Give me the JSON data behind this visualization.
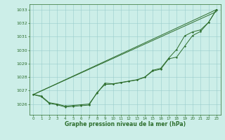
{
  "title": "Graphe pression niveau de la mer (hPa)",
  "bg_color": "#cceee8",
  "grid_color": "#99cccc",
  "line_color": "#2d6e2d",
  "ylim": [
    1025.2,
    1033.4
  ],
  "xlim": [
    -0.5,
    23.5
  ],
  "yticks": [
    1026,
    1027,
    1028,
    1029,
    1030,
    1031,
    1032,
    1033
  ],
  "xticks": [
    0,
    1,
    2,
    3,
    4,
    5,
    6,
    7,
    8,
    9,
    10,
    11,
    12,
    13,
    14,
    15,
    16,
    17,
    18,
    19,
    20,
    21,
    22,
    23
  ],
  "line_main": [
    1026.7,
    1026.55,
    1026.05,
    1025.95,
    1025.78,
    1025.82,
    1025.88,
    1025.92,
    1026.85,
    1027.45,
    1027.48,
    1027.58,
    1027.68,
    1027.78,
    1027.98,
    1028.45,
    1028.58,
    1029.35,
    1029.48,
    1030.28,
    1031.08,
    1031.38,
    1032.05,
    1033.0
  ],
  "line_upper": [
    1026.7,
    1026.6,
    1026.1,
    1026.0,
    1025.85,
    1025.9,
    1025.95,
    1026.0,
    1026.8,
    1027.55,
    1027.5,
    1027.6,
    1027.7,
    1027.8,
    1028.0,
    1028.5,
    1028.65,
    1029.4,
    1030.05,
    1031.05,
    1031.35,
    1031.5,
    1032.05,
    1033.0
  ],
  "line_straight1": [
    [
      0,
      23
    ],
    [
      1026.7,
      1033.0
    ]
  ],
  "line_straight2": [
    [
      0,
      23
    ],
    [
      1026.7,
      1032.85
    ]
  ]
}
